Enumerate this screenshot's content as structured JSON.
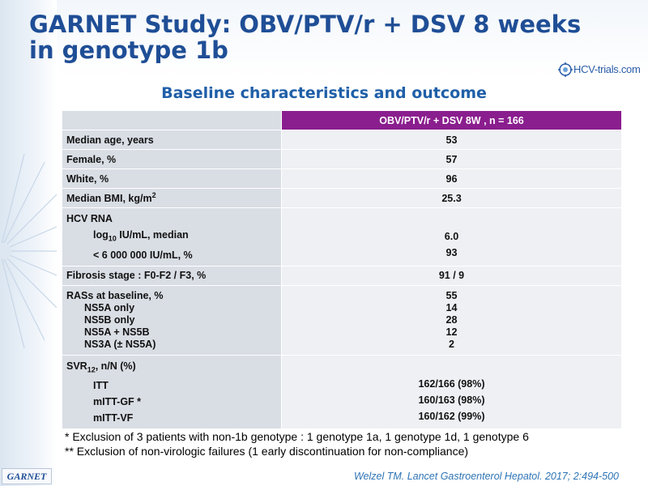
{
  "title": "GARNET Study: OBV/PTV/r + DSV 8 weeks in genotype 1b",
  "logo_text": "HCV-trials.com",
  "subtitle": "Baseline characteristics and outcome",
  "table": {
    "header": "OBV/PTV/r + DSV 8W , n = 166",
    "rows": {
      "age": {
        "label": "Median age, years",
        "value": "53"
      },
      "female": {
        "label": "Female, %",
        "value": "57"
      },
      "white": {
        "label": "White, %",
        "value": "96"
      },
      "bmi": {
        "label": "Median BMI, kg/m",
        "label_sup": "2",
        "value": "25.3"
      },
      "hcv": {
        "label": "HCV RNA",
        "sub1_pre": "log",
        "sub1_sub": "10",
        "sub1_post": " IU/mL, median",
        "value1": "6.0",
        "sub2": "< 6 000 000 IU/mL, %",
        "value2": "93"
      },
      "fibrosis": {
        "label": "Fibrosis stage : F0-F2 / F3, %",
        "value": "91 / 9"
      },
      "ras": {
        "label": "RASs at baseline, %",
        "value": "55",
        "items": [
          {
            "label": "NS5A only",
            "value": "14"
          },
          {
            "label": "NS5B only",
            "value": "28"
          },
          {
            "label": "NS5A + NS5B",
            "value": "12"
          },
          {
            "label": "NS3A (± NS5A)",
            "value": "2"
          }
        ]
      },
      "svr": {
        "label_pre": "SVR",
        "label_sub": "12",
        "label_post": ", n/N (%)",
        "items": [
          {
            "label": "ITT",
            "value": "162/166 (98%)"
          },
          {
            "label": "mITT-GF *",
            "value": "160/163 (98%)"
          },
          {
            "label": "mITT-VF",
            "value": "160/162 (99%)"
          }
        ]
      }
    }
  },
  "footnotes": [
    "* Exclusion of 3 patients with non-1b genotype : 1 genotype 1a, 1 genotype 1d, 1 genotype 6",
    "** Exclusion of non-virologic failures (1 early discontinuation for non-compliance)"
  ],
  "badge": "GARNET",
  "citation": "Welzel TM. Lancet Gastroenterol Hepatol. 2017; 2:494-500"
}
